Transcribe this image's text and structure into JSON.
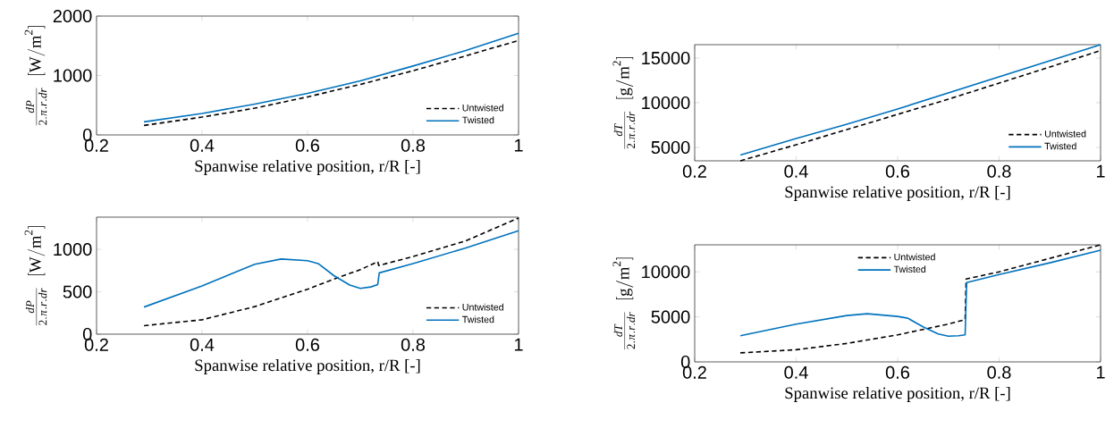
{
  "chart_data": [
    {
      "type": "line",
      "xlabel": "Spanwise relative position, r/R [-]",
      "ylabel": "\\frac{dP}{2.\\pi.r.dr}\\;\\;[\\mathrm{W/m}^{2}]",
      "xlim": [
        0.2,
        1
      ],
      "xticks": [
        0.2,
        0.4,
        0.6,
        0.8,
        1
      ],
      "ylim": [
        0,
        2000
      ],
      "yticks": [
        0,
        1000,
        2000
      ],
      "legend": "bottom right",
      "series": [
        {
          "name": "Untwisted",
          "color": "#000000",
          "line_style": "dashed",
          "x": [
            0.29,
            0.4,
            0.5,
            0.6,
            0.7,
            0.8,
            0.9,
            1.0
          ],
          "values": [
            160,
            300,
            450,
            640,
            850,
            1080,
            1330,
            1590
          ]
        },
        {
          "name": "Twisted",
          "color": "#0072bd",
          "line_style": "solid",
          "x": [
            0.29,
            0.4,
            0.5,
            0.6,
            0.7,
            0.8,
            0.9,
            1.0
          ],
          "values": [
            220,
            360,
            520,
            700,
            910,
            1160,
            1420,
            1710
          ]
        }
      ]
    },
    {
      "type": "line",
      "xlabel": "Spanwise relative position, r/R [-]",
      "ylabel": "\\frac{dP}{2.\\pi.r.dr}\\;\\;[\\mathrm{W/m}^{2}]",
      "xlim": [
        0.2,
        1
      ],
      "xticks": [
        0.2,
        0.4,
        0.6,
        0.8,
        1
      ],
      "ylim": [
        0,
        1380
      ],
      "yticks": [
        0,
        500,
        1000
      ],
      "legend": "bottom right",
      "series": [
        {
          "name": "Untwisted",
          "color": "#000000",
          "line_style": "dashed",
          "x": [
            0.29,
            0.4,
            0.5,
            0.6,
            0.65,
            0.7,
            0.733,
            0.735,
            0.8,
            0.9,
            1.0
          ],
          "values": [
            100,
            170,
            325,
            530,
            650,
            760,
            855,
            810,
            915,
            1100,
            1370
          ]
        },
        {
          "name": "Twisted",
          "color": "#0072bd",
          "line_style": "solid",
          "x": [
            0.29,
            0.4,
            0.5,
            0.55,
            0.6,
            0.62,
            0.65,
            0.68,
            0.7,
            0.72,
            0.733,
            0.736,
            0.8,
            0.9,
            1.0
          ],
          "values": [
            320,
            570,
            825,
            886,
            866,
            833,
            690,
            580,
            540,
            557,
            585,
            723,
            833,
            1016,
            1220
          ]
        }
      ]
    },
    {
      "type": "line",
      "xlabel": "Spanwise relative position, r/R [-]",
      "ylabel": "\\frac{dT}{2.\\pi.r.dr}\\;\\;[\\mathrm{g/m}^{2}]",
      "xlim": [
        0.2,
        1
      ],
      "xticks": [
        0.2,
        0.4,
        0.6,
        0.8,
        1
      ],
      "ylim": [
        3500,
        16500
      ],
      "yticks": [
        5000,
        10000,
        15000
      ],
      "legend": "bottom right",
      "series": [
        {
          "name": "Untwisted",
          "color": "#000000",
          "line_style": "dashed",
          "x": [
            0.29,
            0.4,
            0.5,
            0.6,
            0.7,
            0.8,
            0.9,
            1.0
          ],
          "values": [
            3500,
            5300,
            7000,
            8700,
            10400,
            12200,
            14000,
            15850
          ]
        },
        {
          "name": "Twisted",
          "color": "#0072bd",
          "line_style": "solid",
          "x": [
            0.29,
            0.4,
            0.5,
            0.6,
            0.7,
            0.8,
            0.9,
            1.0
          ],
          "values": [
            4150,
            6000,
            7600,
            9300,
            11100,
            12900,
            14700,
            16500
          ]
        }
      ]
    },
    {
      "type": "line",
      "xlabel": "Spanwise relative position, r/R [-]",
      "ylabel": "\\frac{dT}{2.\\pi.r.dr}\\;\\;[\\mathrm{g/m}^{2}]",
      "xlim": [
        0.2,
        1
      ],
      "xticks": [
        0.2,
        0.4,
        0.6,
        0.8,
        1
      ],
      "ylim": [
        0,
        13000
      ],
      "yticks": [
        0,
        5000,
        10000
      ],
      "legend": "top",
      "series": [
        {
          "name": "Untwisted",
          "color": "#000000",
          "line_style": "dashed",
          "x": [
            0.29,
            0.4,
            0.5,
            0.6,
            0.65,
            0.7,
            0.733,
            0.735,
            0.8,
            0.9,
            1.0
          ],
          "values": [
            1000,
            1350,
            2050,
            3000,
            3600,
            4200,
            4700,
            9200,
            10000,
            11500,
            13000
          ]
        },
        {
          "name": "Twisted",
          "color": "#0072bd",
          "line_style": "solid",
          "x": [
            0.29,
            0.4,
            0.5,
            0.54,
            0.6,
            0.62,
            0.65,
            0.68,
            0.7,
            0.72,
            0.733,
            0.736,
            0.8,
            0.9,
            1.0
          ],
          "values": [
            2900,
            4200,
            5150,
            5350,
            5050,
            4850,
            3900,
            3100,
            2850,
            2900,
            3000,
            8800,
            9700,
            11000,
            12400
          ]
        }
      ]
    }
  ]
}
